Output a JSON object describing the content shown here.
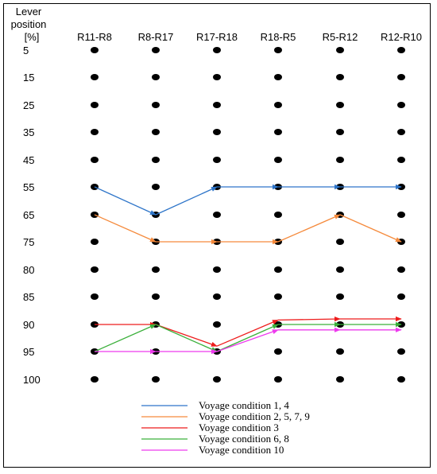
{
  "chart_data": {
    "type": "line",
    "ytitle_lines": [
      "Lever",
      "position",
      "[%]"
    ],
    "categories": [
      "R11-R8",
      "R8-R17",
      "R17-R18",
      "R18-R5",
      "R5-R12",
      "R12-R10"
    ],
    "levels": [
      "5",
      "15",
      "25",
      "35",
      "45",
      "55",
      "65",
      "75",
      "80",
      "85",
      "90",
      "95",
      "100"
    ],
    "series": [
      {
        "name": "Voyage condition 1, 4",
        "color": "#2e75c9",
        "values": [
          55,
          65,
          55,
          55,
          55,
          55
        ]
      },
      {
        "name": "Voyage condition 2, 5, 7, 9",
        "color": "#f58a3c",
        "values": [
          65,
          75,
          75,
          75,
          65,
          75
        ]
      },
      {
        "name": "Voyage condition 3",
        "color": "#ee1c1c",
        "values": [
          90,
          90,
          94,
          89.2,
          89,
          89
        ]
      },
      {
        "name": "Voyage condition 6, 8",
        "color": "#3bb03b",
        "values": [
          95,
          90,
          95,
          90,
          90,
          90
        ]
      },
      {
        "name": "Voyage condition 10",
        "color": "#ee3bee",
        "values": [
          95,
          95,
          95,
          91,
          91,
          91
        ]
      }
    ],
    "grid": false,
    "legend_position": "bottom-center"
  }
}
